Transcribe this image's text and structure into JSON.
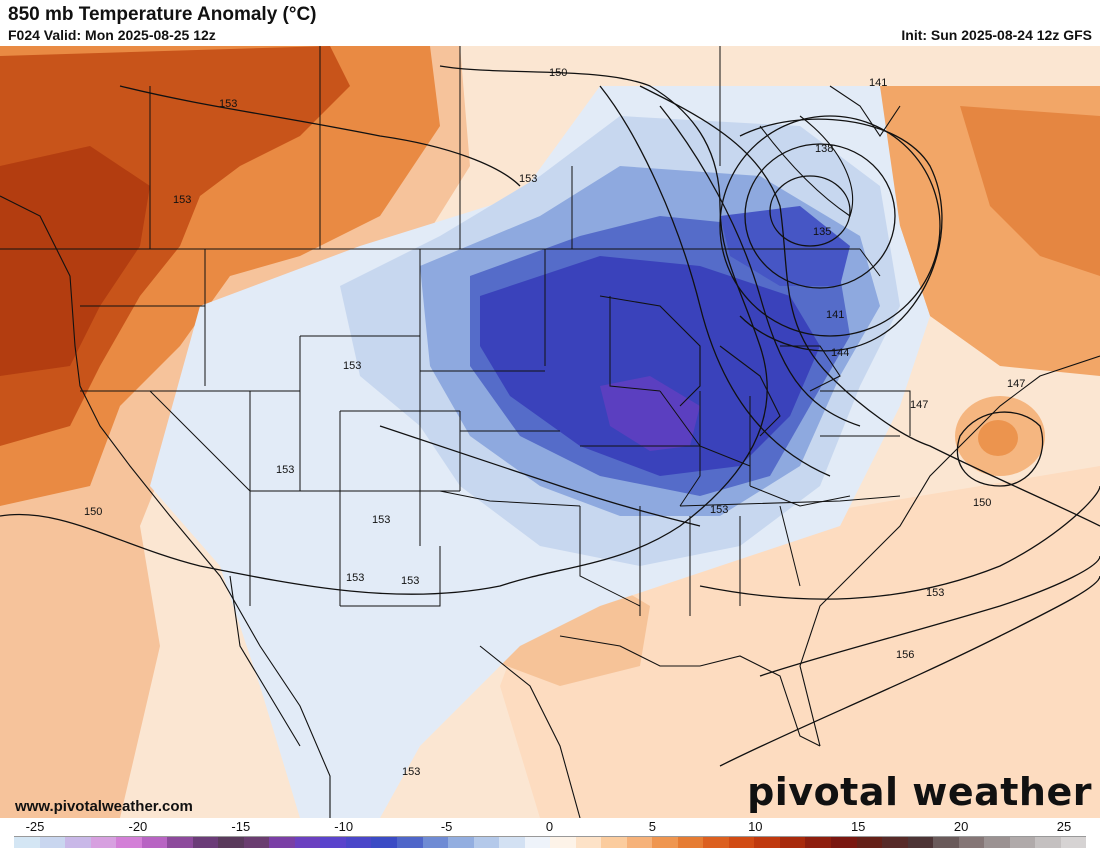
{
  "header": {
    "title": "850 mb Temperature Anomaly (°C)",
    "valid": "F024 Valid: Mon 2025-08-25 12z",
    "init": "Init: Sun 2025-08-24 12z GFS"
  },
  "footer": {
    "website": "www.pivotalweather.com",
    "logo": "pivotal weather"
  },
  "colorbar": {
    "tick_labels": [
      "-25",
      "-20",
      "-15",
      "-10",
      "-5",
      "0",
      "5",
      "10",
      "15",
      "20",
      "25"
    ],
    "colors": [
      "#d4e6f4",
      "#c9d6ef",
      "#c9b8e8",
      "#d7a0e0",
      "#d37fd7",
      "#b864c3",
      "#8d4a9c",
      "#6b3c78",
      "#5a3a5c",
      "#6a3d70",
      "#7a3fa5",
      "#6b40c0",
      "#5a43cc",
      "#4a46c9",
      "#3b4bc5",
      "#4f66c9",
      "#6f8bd4",
      "#93aee0",
      "#b4c9ea",
      "#d3e1f3",
      "#eef3fa",
      "#fdf3e8",
      "#fde2c7",
      "#fbcc9e",
      "#f6b27a",
      "#ef9650",
      "#e67c33",
      "#dc6020",
      "#d14b14",
      "#c0390e",
      "#a82a0c",
      "#8e1e0e",
      "#7a1710",
      "#652018",
      "#572a28",
      "#4d3435",
      "#6a5a5a",
      "#857676",
      "#9b9292",
      "#b0aaaa",
      "#c4c0c0",
      "#d6d3d3"
    ]
  },
  "map": {
    "contour_labels": [
      "150",
      "141",
      "138",
      "135",
      "141",
      "144",
      "147",
      "147",
      "150",
      "153",
      "153",
      "153",
      "153",
      "153",
      "153",
      "153",
      "153",
      "153",
      "156",
      "153",
      "150",
      "153"
    ],
    "colors": {
      "warm_deep": "#c24a12",
      "warm": "#e07a34",
      "warm_light": "#f4b27e",
      "warm_pale": "#fad8b8",
      "cold_deep": "#3a3fb8",
      "cold": "#4e62c8",
      "cold_light": "#8aa6de",
      "cold_pale": "#c6d7ef",
      "cold_faint": "#e3ecf8"
    }
  }
}
